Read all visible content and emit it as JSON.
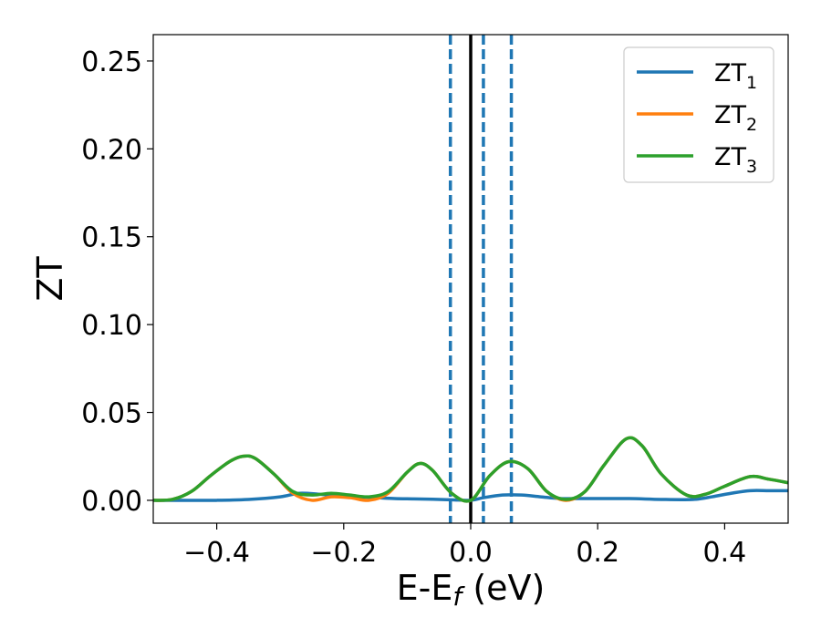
{
  "chart_data": {
    "type": "line",
    "title": "",
    "xlabel": {
      "main": "E-E",
      "sub": "f",
      "unit": " (eV)"
    },
    "ylabel": "ZT",
    "xlim": [
      -0.5,
      0.5
    ],
    "ylim": [
      -0.013,
      0.265
    ],
    "x_ticks": [
      -0.4,
      -0.2,
      0.0,
      0.2,
      0.4
    ],
    "x_tick_labels": [
      "−0.4",
      "−0.2",
      "0.0",
      "0.2",
      "0.4"
    ],
    "y_ticks": [
      0.0,
      0.05,
      0.1,
      0.15,
      0.2,
      0.25
    ],
    "y_tick_labels": [
      "0.00",
      "0.05",
      "0.10",
      "0.15",
      "0.20",
      "0.25"
    ],
    "grid": false,
    "legend_position": "top-right",
    "vertical_lines": [
      {
        "x": 0.0,
        "style": "solid",
        "color": "#000000"
      },
      {
        "x": -0.032,
        "style": "dashed",
        "color": "#1f77b4"
      },
      {
        "x": 0.02,
        "style": "dashed",
        "color": "#1f77b4"
      },
      {
        "x": 0.064,
        "style": "dashed",
        "color": "#1f77b4"
      }
    ],
    "series": [
      {
        "name": "ZT",
        "sub": "1",
        "color": "#1f77b4",
        "x": [
          -0.5,
          -0.45,
          -0.4,
          -0.35,
          -0.3,
          -0.27,
          -0.24,
          -0.21,
          -0.18,
          -0.15,
          -0.12,
          -0.09,
          -0.06,
          -0.03,
          0.0,
          0.02,
          0.05,
          0.08,
          0.11,
          0.14,
          0.17,
          0.2,
          0.25,
          0.3,
          0.35,
          0.38,
          0.41,
          0.44,
          0.47,
          0.5
        ],
        "y": [
          0.0,
          0.0,
          0.0,
          0.0005,
          0.002,
          0.004,
          0.0035,
          0.0025,
          0.002,
          0.0015,
          0.001,
          0.0008,
          0.0006,
          0.0003,
          0.0,
          0.0015,
          0.003,
          0.003,
          0.002,
          0.001,
          0.001,
          0.001,
          0.001,
          0.0005,
          0.0005,
          0.002,
          0.004,
          0.0055,
          0.0055,
          0.0055
        ]
      },
      {
        "name": "ZT",
        "sub": "2",
        "color": "#ff7f0e",
        "x": [
          -0.5,
          -0.47,
          -0.44,
          -0.41,
          -0.38,
          -0.36,
          -0.34,
          -0.31,
          -0.28,
          -0.25,
          -0.22,
          -0.19,
          -0.16,
          -0.13,
          -0.1,
          -0.08,
          -0.06,
          -0.03,
          0.0,
          0.03,
          0.06,
          0.09,
          0.12,
          0.15,
          0.18,
          0.21,
          0.245,
          0.27,
          0.3,
          0.34,
          0.37,
          0.4,
          0.44,
          0.47,
          0.5
        ],
        "y": [
          0.0,
          0.0005,
          0.005,
          0.014,
          0.022,
          0.025,
          0.024,
          0.015,
          0.004,
          0.0,
          0.002,
          0.0015,
          0.0,
          0.004,
          0.016,
          0.021,
          0.017,
          0.004,
          0.0,
          0.014,
          0.022,
          0.018,
          0.005,
          0.0,
          0.005,
          0.02,
          0.035,
          0.031,
          0.015,
          0.003,
          0.0035,
          0.008,
          0.0135,
          0.012,
          0.01
        ]
      },
      {
        "name": "ZT",
        "sub": "3",
        "color": "#2ca02c",
        "x": [
          -0.5,
          -0.47,
          -0.44,
          -0.41,
          -0.38,
          -0.36,
          -0.34,
          -0.31,
          -0.28,
          -0.25,
          -0.22,
          -0.19,
          -0.16,
          -0.13,
          -0.1,
          -0.08,
          -0.06,
          -0.03,
          0.0,
          0.03,
          0.06,
          0.09,
          0.12,
          0.15,
          0.18,
          0.21,
          0.245,
          0.27,
          0.3,
          0.34,
          0.37,
          0.4,
          0.44,
          0.47,
          0.5
        ],
        "y": [
          0.0,
          0.0005,
          0.005,
          0.014,
          0.022,
          0.025,
          0.024,
          0.015,
          0.005,
          0.003,
          0.004,
          0.003,
          0.002,
          0.005,
          0.016,
          0.021,
          0.017,
          0.004,
          0.0,
          0.014,
          0.022,
          0.018,
          0.005,
          0.0005,
          0.005,
          0.02,
          0.035,
          0.031,
          0.015,
          0.003,
          0.0035,
          0.008,
          0.0135,
          0.012,
          0.01
        ]
      }
    ]
  }
}
